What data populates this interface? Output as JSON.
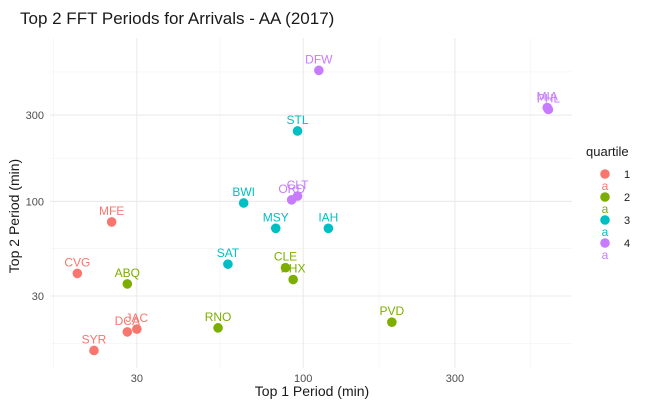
{
  "chart_data": {
    "type": "scatter",
    "title": "Top 2 FFT Periods for Arrivals - AA (2017)",
    "xlabel": "Top 1 Period (min)",
    "ylabel": "Top 2 Period (min)",
    "xscale": "log",
    "yscale": "log",
    "xlim": [
      16,
      700
    ],
    "ylim": [
      12,
      800
    ],
    "xticks": [
      30,
      100,
      300
    ],
    "yticks": [
      30,
      100,
      300
    ],
    "grid": true,
    "legend": {
      "title": "quartile",
      "position": "right",
      "key_glyph": "a",
      "entries": [
        {
          "label": "1",
          "color": "#F8766D"
        },
        {
          "label": "2",
          "color": "#7CAE00"
        },
        {
          "label": "3",
          "color": "#00BFC4"
        },
        {
          "label": "4",
          "color": "#C77CFF"
        }
      ]
    },
    "points": [
      {
        "label": "SYR",
        "x": 22,
        "y": 15,
        "q": 0
      },
      {
        "label": "DCA",
        "x": 28,
        "y": 19,
        "q": 0
      },
      {
        "label": "JAC",
        "x": 30,
        "y": 19.7,
        "q": 0
      },
      {
        "label": "CVG",
        "x": 19.5,
        "y": 40,
        "q": 0
      },
      {
        "label": "MFE",
        "x": 25,
        "y": 77,
        "q": 0
      },
      {
        "label": "ABQ",
        "x": 28,
        "y": 35,
        "q": 1
      },
      {
        "label": "RNO",
        "x": 54,
        "y": 20,
        "q": 1
      },
      {
        "label": "CLE",
        "x": 88,
        "y": 43,
        "q": 1
      },
      {
        "label": "PHX",
        "x": 93,
        "y": 37,
        "q": 1
      },
      {
        "label": "PVD",
        "x": 190,
        "y": 21.5,
        "q": 1
      },
      {
        "label": "SAT",
        "x": 58,
        "y": 45,
        "q": 2
      },
      {
        "label": "BWI",
        "x": 65,
        "y": 98,
        "q": 2
      },
      {
        "label": "MSY",
        "x": 82,
        "y": 71,
        "q": 2
      },
      {
        "label": "STL",
        "x": 96,
        "y": 245,
        "q": 2
      },
      {
        "label": "IAH",
        "x": 120,
        "y": 71,
        "q": 2
      },
      {
        "label": "ORD",
        "x": 92,
        "y": 102,
        "q": 3
      },
      {
        "label": "CLT",
        "x": 96,
        "y": 107,
        "q": 3
      },
      {
        "label": "DFW",
        "x": 112,
        "y": 530,
        "q": 3
      },
      {
        "label": "MIA",
        "x": 585,
        "y": 330,
        "q": 3
      },
      {
        "label": "PHL",
        "x": 590,
        "y": 322,
        "q": 3
      }
    ]
  }
}
